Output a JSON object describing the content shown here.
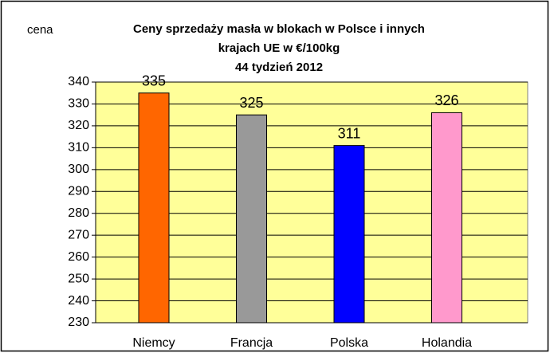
{
  "chart_data": {
    "type": "bar",
    "title": [
      "Ceny sprzedaży masła w blokach w Polsce i  innych",
      "krajach UE w €/100kg",
      "44 tydzień 2012"
    ],
    "y_label": "cena",
    "categories": [
      "Niemcy",
      "Francja",
      "Polska",
      "Holandia"
    ],
    "values": [
      335,
      325,
      311,
      326
    ],
    "colors": [
      "#ff6600",
      "#999999",
      "#0000ff",
      "#ff99cc"
    ],
    "ylim": [
      230,
      340
    ],
    "yticks": [
      230,
      240,
      250,
      260,
      270,
      280,
      290,
      300,
      310,
      320,
      330,
      340
    ],
    "grid": true,
    "plot_background": "#ffff99"
  }
}
